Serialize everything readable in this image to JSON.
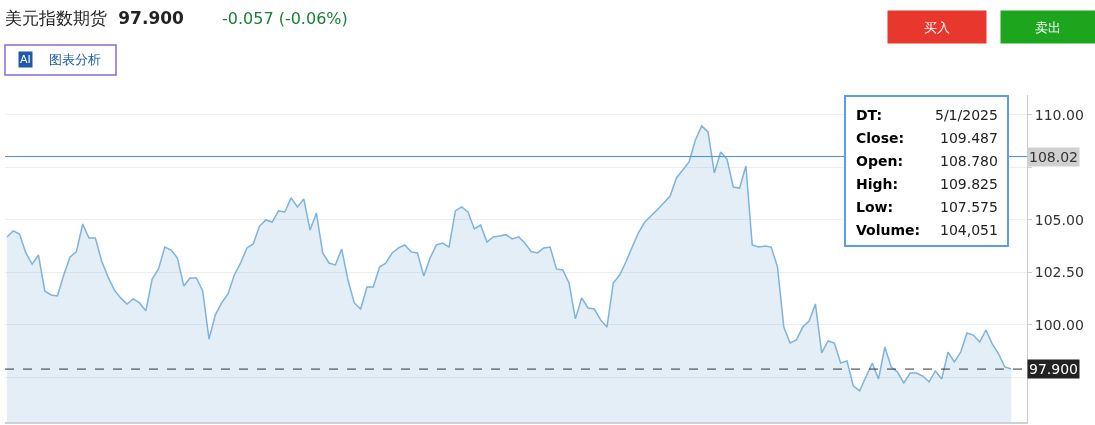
{
  "chart_data": {
    "type": "area",
    "title": "美元指数期货",
    "subtitle": "97.900",
    "annotations": [
      "-0.057 (-0.06%)",
      "AI",
      "图表分析",
      "买入",
      "卖出",
      "DT:",
      "5/1/2025",
      "Close:",
      "109.487",
      "Open:",
      "108.780",
      "High:",
      "109.825",
      "Low:",
      "107.575",
      "Volume:",
      "104,051"
    ],
    "categories": [
      null,
      null,
      null,
      null,
      null,
      null,
      null,
      null,
      null,
      null,
      null,
      null,
      null,
      null,
      null,
      null,
      null,
      null,
      null,
      null,
      null,
      null,
      null,
      null,
      null,
      null,
      null,
      null,
      null,
      null,
      null,
      null,
      null,
      null,
      null,
      null,
      null,
      null,
      null,
      null,
      null,
      null,
      null,
      null,
      null,
      null,
      null,
      null,
      null,
      null,
      null,
      null,
      null,
      null,
      null,
      null,
      null,
      null,
      null,
      null,
      null,
      null,
      null,
      null,
      null,
      null,
      null,
      null,
      null,
      null,
      null,
      null,
      null,
      null,
      null,
      null,
      null,
      null,
      null,
      null,
      null,
      null,
      null,
      null,
      null,
      null,
      null,
      null,
      null,
      null,
      null,
      null,
      null,
      null,
      null,
      null,
      null,
      null,
      null,
      null,
      null,
      null,
      null,
      null,
      null,
      null,
      null,
      null,
      null,
      null,
      null,
      null,
      null,
      null,
      null,
      null,
      null,
      null,
      null,
      null,
      null,
      null,
      null,
      null,
      null,
      null,
      null,
      null,
      null,
      null,
      null,
      null,
      null,
      null,
      null,
      null,
      null,
      null,
      null,
      null,
      null,
      null,
      null,
      null,
      null,
      null,
      null,
      null,
      null,
      null,
      null,
      null,
      null,
      null,
      null,
      null,
      null,
      null,
      null,
      null
    ],
    "series": [
      {
        "color": "#7fb3dc",
        "values": [
          104.19,
          104.48,
          104.33,
          103.43,
          102.9,
          103.33,
          101.62,
          101.43,
          101.38,
          102.38,
          103.24,
          103.48,
          104.81,
          104.14,
          104.14,
          103.05,
          102.29,
          101.67,
          101.29,
          101.0,
          101.24,
          101.05,
          100.67,
          102.19,
          102.67,
          103.71,
          103.57,
          103.19,
          101.86,
          102.24,
          102.24,
          101.62,
          99.33,
          100.48,
          101.05,
          101.48,
          102.38,
          102.95,
          103.67,
          103.86,
          104.71,
          105.0,
          104.9,
          105.43,
          105.38,
          106.05,
          105.62,
          106.0,
          104.52,
          105.33,
          103.43,
          102.95,
          102.86,
          103.62,
          102.14,
          101.05,
          100.76,
          101.81,
          101.81,
          102.76,
          102.95,
          103.43,
          103.67,
          103.81,
          103.48,
          103.43,
          102.33,
          103.19,
          103.81,
          103.9,
          103.71,
          105.43,
          105.62,
          105.38,
          104.57,
          104.76,
          103.95,
          104.19,
          104.24,
          104.3,
          104.1,
          104.2,
          103.9,
          103.5,
          103.43,
          103.67,
          103.71,
          102.67,
          102.62,
          102.0,
          100.29,
          101.29,
          100.81,
          100.76,
          100.24,
          99.9,
          102.0,
          102.38,
          103.0,
          103.71,
          104.4,
          104.9,
          105.2,
          105.5,
          105.81,
          106.14,
          107.0,
          107.38,
          107.76,
          108.81,
          109.48,
          109.19,
          107.24,
          108.24,
          107.9,
          106.57,
          106.52,
          107.57,
          103.81,
          103.71,
          103.76,
          103.71,
          102.76,
          99.9,
          99.14,
          99.29,
          99.9,
          100.19,
          101.0,
          98.67,
          99.24,
          99.14,
          98.19,
          98.29,
          97.1,
          96.86,
          97.52,
          98.19,
          97.43,
          98.95,
          98.0,
          97.76,
          97.24,
          97.71,
          97.71,
          97.57,
          97.29,
          97.81,
          97.43,
          98.71,
          98.24,
          98.71,
          99.62,
          99.52,
          99.19,
          99.76,
          99.1,
          98.62,
          98.0,
          97.9
        ]
      }
    ],
    "ylim": [
      95.38,
      110.95
    ],
    "yticks": [
      {
        "value": 97.5,
        "label": null
      },
      {
        "value": 100,
        "label": "100.00"
      },
      {
        "value": 102.5,
        "label": "102.50"
      },
      {
        "value": 105,
        "label": "105.00"
      },
      {
        "value": 107.5,
        "label": null
      },
      {
        "value": 110,
        "label": "110.00"
      }
    ],
    "ref_lines": [
      {
        "axis": "y",
        "value": 108.02,
        "label": "108.02",
        "color": "#4a90d9",
        "line_style": "solid"
      },
      {
        "axis": "y",
        "value": 97.9,
        "label": "97.900",
        "color": "#333333",
        "line_style": "dashed"
      }
    ],
    "grid": "y"
  }
}
